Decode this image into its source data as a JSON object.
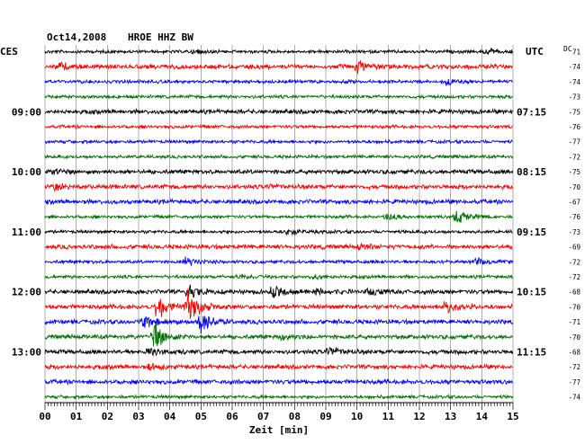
{
  "header": {
    "date": "Oct14,2008",
    "station": "HROE HHZ BW",
    "left_tz": "CES",
    "right_tz": "UTC",
    "dc_label": "DC",
    "xlabel": "Zeit [min]"
  },
  "chart_data": {
    "type": "line",
    "title": "Oct14,2008   HROE HHZ BW",
    "xlabel": "Zeit [min]",
    "xlim": [
      0,
      15
    ],
    "x_ticks": [
      "00",
      "01",
      "02",
      "03",
      "04",
      "05",
      "06",
      "07",
      "08",
      "09",
      "10",
      "11",
      "12",
      "13",
      "14",
      "15"
    ],
    "trace_colors": [
      "#000000",
      "#ff0000",
      "#0000ff",
      "#007000"
    ],
    "grid": "vertical lines every minute",
    "left_time_labels": [
      {
        "row": 4,
        "text": "09:00"
      },
      {
        "row": 8,
        "text": "10:00"
      },
      {
        "row": 12,
        "text": "11:00"
      },
      {
        "row": 16,
        "text": "12:00"
      },
      {
        "row": 20,
        "text": "13:00"
      }
    ],
    "right_time_labels": [
      {
        "row": 4,
        "text": "07:15"
      },
      {
        "row": 8,
        "text": "08:15"
      },
      {
        "row": 12,
        "text": "09:15"
      },
      {
        "row": 16,
        "text": "10:15"
      },
      {
        "row": 20,
        "text": "11:15"
      }
    ],
    "dc_offsets": [
      "71",
      "-74",
      "-74",
      "-73",
      "-75",
      "-76",
      "-77",
      "-72",
      "-75",
      "-70",
      "-67",
      "-76",
      "-73",
      "-69",
      "-72",
      "-72",
      "-68",
      "-70",
      "-71",
      "-70",
      "-68",
      "-72",
      "-77",
      "-74"
    ],
    "rows": [
      {
        "noise": 1.5,
        "events": [
          {
            "t": 14.2,
            "a": 3
          },
          {
            "t": 4.8,
            "a": 2
          }
        ]
      },
      {
        "noise": 2,
        "events": [
          {
            "t": 0.5,
            "a": 4
          },
          {
            "t": 10.0,
            "a": 9
          }
        ]
      },
      {
        "noise": 1.5,
        "events": [
          {
            "t": 12.9,
            "a": 5
          }
        ]
      },
      {
        "noise": 1.5,
        "events": []
      },
      {
        "noise": 2,
        "events": []
      },
      {
        "noise": 1.5,
        "events": []
      },
      {
        "noise": 1.5,
        "events": []
      },
      {
        "noise": 1.5,
        "events": []
      },
      {
        "noise": 2,
        "events": [
          {
            "t": 0.3,
            "a": 3
          }
        ]
      },
      {
        "noise": 2,
        "events": [
          {
            "t": 0.3,
            "a": 4
          },
          {
            "t": 7.2,
            "a": 3
          }
        ]
      },
      {
        "noise": 2,
        "events": []
      },
      {
        "noise": 1.5,
        "events": [
          {
            "t": 11.0,
            "a": 4
          },
          {
            "t": 13.2,
            "a": 9
          }
        ]
      },
      {
        "noise": 1.5,
        "events": [
          {
            "t": 7.8,
            "a": 4
          }
        ]
      },
      {
        "noise": 2,
        "events": [
          {
            "t": 10.1,
            "a": 4
          }
        ]
      },
      {
        "noise": 1.5,
        "events": [
          {
            "t": 4.5,
            "a": 5
          },
          {
            "t": 13.8,
            "a": 4
          }
        ]
      },
      {
        "noise": 1.5,
        "events": [
          {
            "t": 6.2,
            "a": 3
          },
          {
            "t": 8.6,
            "a": 3
          }
        ]
      },
      {
        "noise": 2,
        "events": [
          {
            "t": 4.6,
            "a": 8
          },
          {
            "t": 7.3,
            "a": 8
          },
          {
            "t": 8.7,
            "a": 4
          },
          {
            "t": 10.4,
            "a": 4
          }
        ]
      },
      {
        "noise": 2,
        "events": [
          {
            "t": 3.6,
            "a": 16
          },
          {
            "t": 4.6,
            "a": 22
          },
          {
            "t": 12.8,
            "a": 8
          }
        ]
      },
      {
        "noise": 2,
        "events": [
          {
            "t": 3.2,
            "a": 9
          },
          {
            "t": 5.0,
            "a": 14
          }
        ]
      },
      {
        "noise": 2,
        "events": [
          {
            "t": 3.5,
            "a": 16
          },
          {
            "t": 7.6,
            "a": 4
          }
        ]
      },
      {
        "noise": 2,
        "events": [
          {
            "t": 3.3,
            "a": 5
          },
          {
            "t": 9.1,
            "a": 7
          }
        ]
      },
      {
        "noise": 2,
        "events": [
          {
            "t": 3.4,
            "a": 4
          }
        ]
      },
      {
        "noise": 2,
        "events": []
      },
      {
        "noise": 1.5,
        "events": []
      }
    ]
  }
}
